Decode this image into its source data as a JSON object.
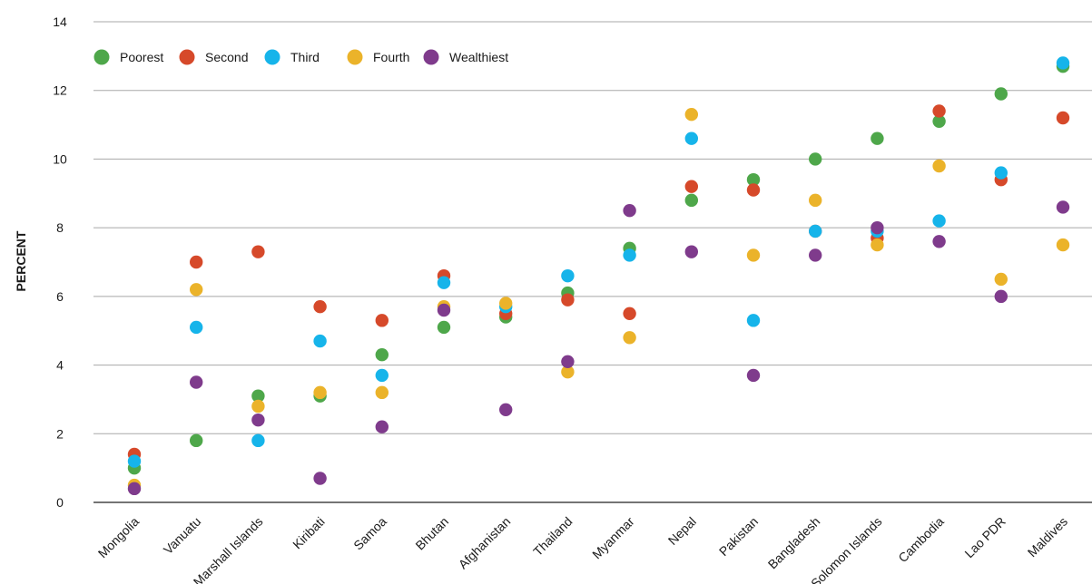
{
  "chart_data": {
    "type": "scatter",
    "title": "",
    "xlabel": "",
    "ylabel": "PERCENT",
    "ylim": [
      0,
      14
    ],
    "yticks": [
      0,
      2,
      4,
      6,
      8,
      10,
      12,
      14
    ],
    "grid": "horizontal",
    "legend_position": "top-left",
    "categories": [
      "Mongolia",
      "Vanuatu",
      "Marshall Islands",
      "Kiribati",
      "Samoa",
      "Bhutan",
      "Afghanistan",
      "Thailand",
      "Myanmar",
      "Nepal",
      "Pakistan",
      "Bangladesh",
      "Solomon Islands",
      "Cambodia",
      "Lao PDR",
      "Maldives"
    ],
    "series": [
      {
        "name": "Poorest",
        "color": "#4ea74a",
        "values": [
          1.0,
          1.8,
          3.1,
          3.1,
          4.3,
          5.1,
          5.4,
          6.1,
          7.4,
          8.8,
          9.4,
          10.0,
          10.6,
          11.1,
          11.9,
          12.7
        ]
      },
      {
        "name": "Second",
        "color": "#d6492a",
        "values": [
          1.4,
          7.0,
          7.3,
          5.7,
          5.3,
          6.6,
          5.5,
          5.9,
          5.5,
          9.2,
          9.1,
          7.9,
          7.7,
          11.4,
          9.4,
          11.2
        ]
      },
      {
        "name": "Third",
        "color": "#16b4ea",
        "values": [
          1.2,
          5.1,
          1.8,
          4.7,
          3.7,
          6.4,
          5.7,
          6.6,
          7.2,
          10.6,
          5.3,
          7.9,
          7.9,
          8.2,
          9.6,
          12.8
        ]
      },
      {
        "name": "Fourth",
        "color": "#ebb32a",
        "values": [
          0.5,
          6.2,
          2.8,
          3.2,
          3.2,
          5.7,
          5.8,
          3.8,
          4.8,
          11.3,
          7.2,
          8.8,
          7.5,
          9.8,
          6.5,
          7.5
        ]
      },
      {
        "name": "Wealthiest",
        "color": "#7f3b8c",
        "values": [
          0.4,
          3.5,
          2.4,
          0.7,
          2.2,
          5.6,
          2.7,
          4.1,
          8.5,
          7.3,
          3.7,
          7.2,
          8.0,
          7.6,
          6.0,
          8.6
        ]
      }
    ]
  }
}
